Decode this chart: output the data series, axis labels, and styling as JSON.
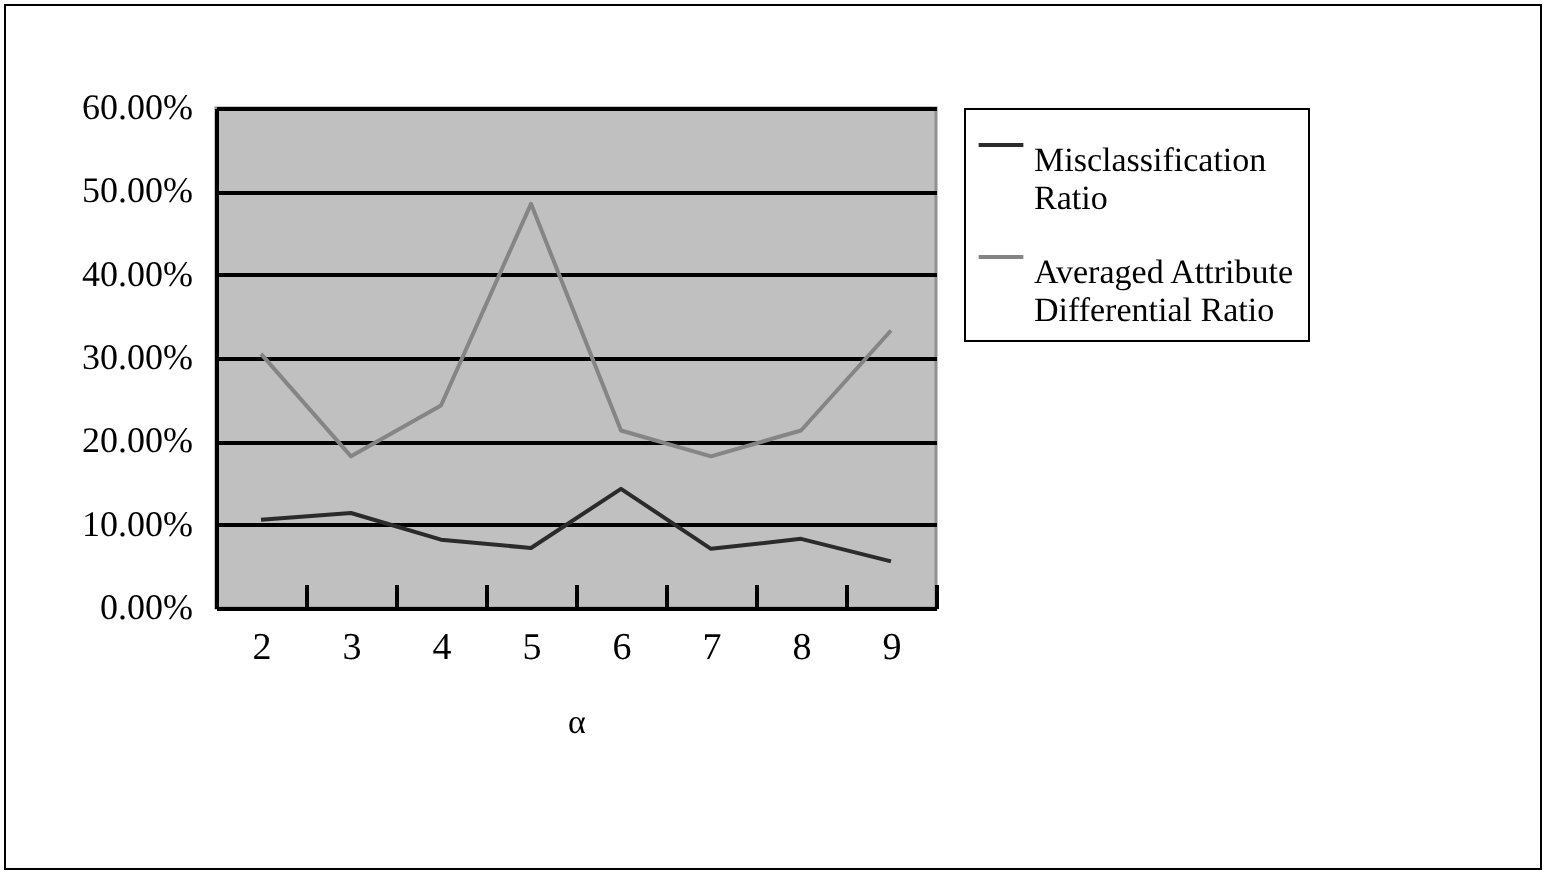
{
  "chart_data": {
    "type": "line",
    "xlabel": "α",
    "categories": [
      "2",
      "3",
      "4",
      "5",
      "6",
      "7",
      "8",
      "9"
    ],
    "series": [
      {
        "name": "Misclassification Ratio",
        "color": "#2b2b2b",
        "values": [
          10.6,
          11.4,
          8.2,
          7.2,
          14.3,
          7.1,
          8.3,
          5.6
        ]
      },
      {
        "name": "Averaged Attribute Differential Ratio",
        "color": "#858585",
        "values": [
          30.5,
          18.2,
          24.3,
          48.5,
          21.3,
          18.2,
          21.3,
          33.3
        ]
      }
    ],
    "ylim": [
      0,
      60
    ],
    "yticks": [
      {
        "value": 0,
        "label": "0.00%"
      },
      {
        "value": 10,
        "label": "10.00%"
      },
      {
        "value": 20,
        "label": "20.00%"
      },
      {
        "value": 30,
        "label": "30.00%"
      },
      {
        "value": 40,
        "label": "40.00%"
      },
      {
        "value": 50,
        "label": "50.00%"
      },
      {
        "value": 60,
        "label": "60.00%"
      }
    ],
    "grid": "y",
    "legend": "right",
    "marker": "none",
    "line_style": "solid"
  }
}
